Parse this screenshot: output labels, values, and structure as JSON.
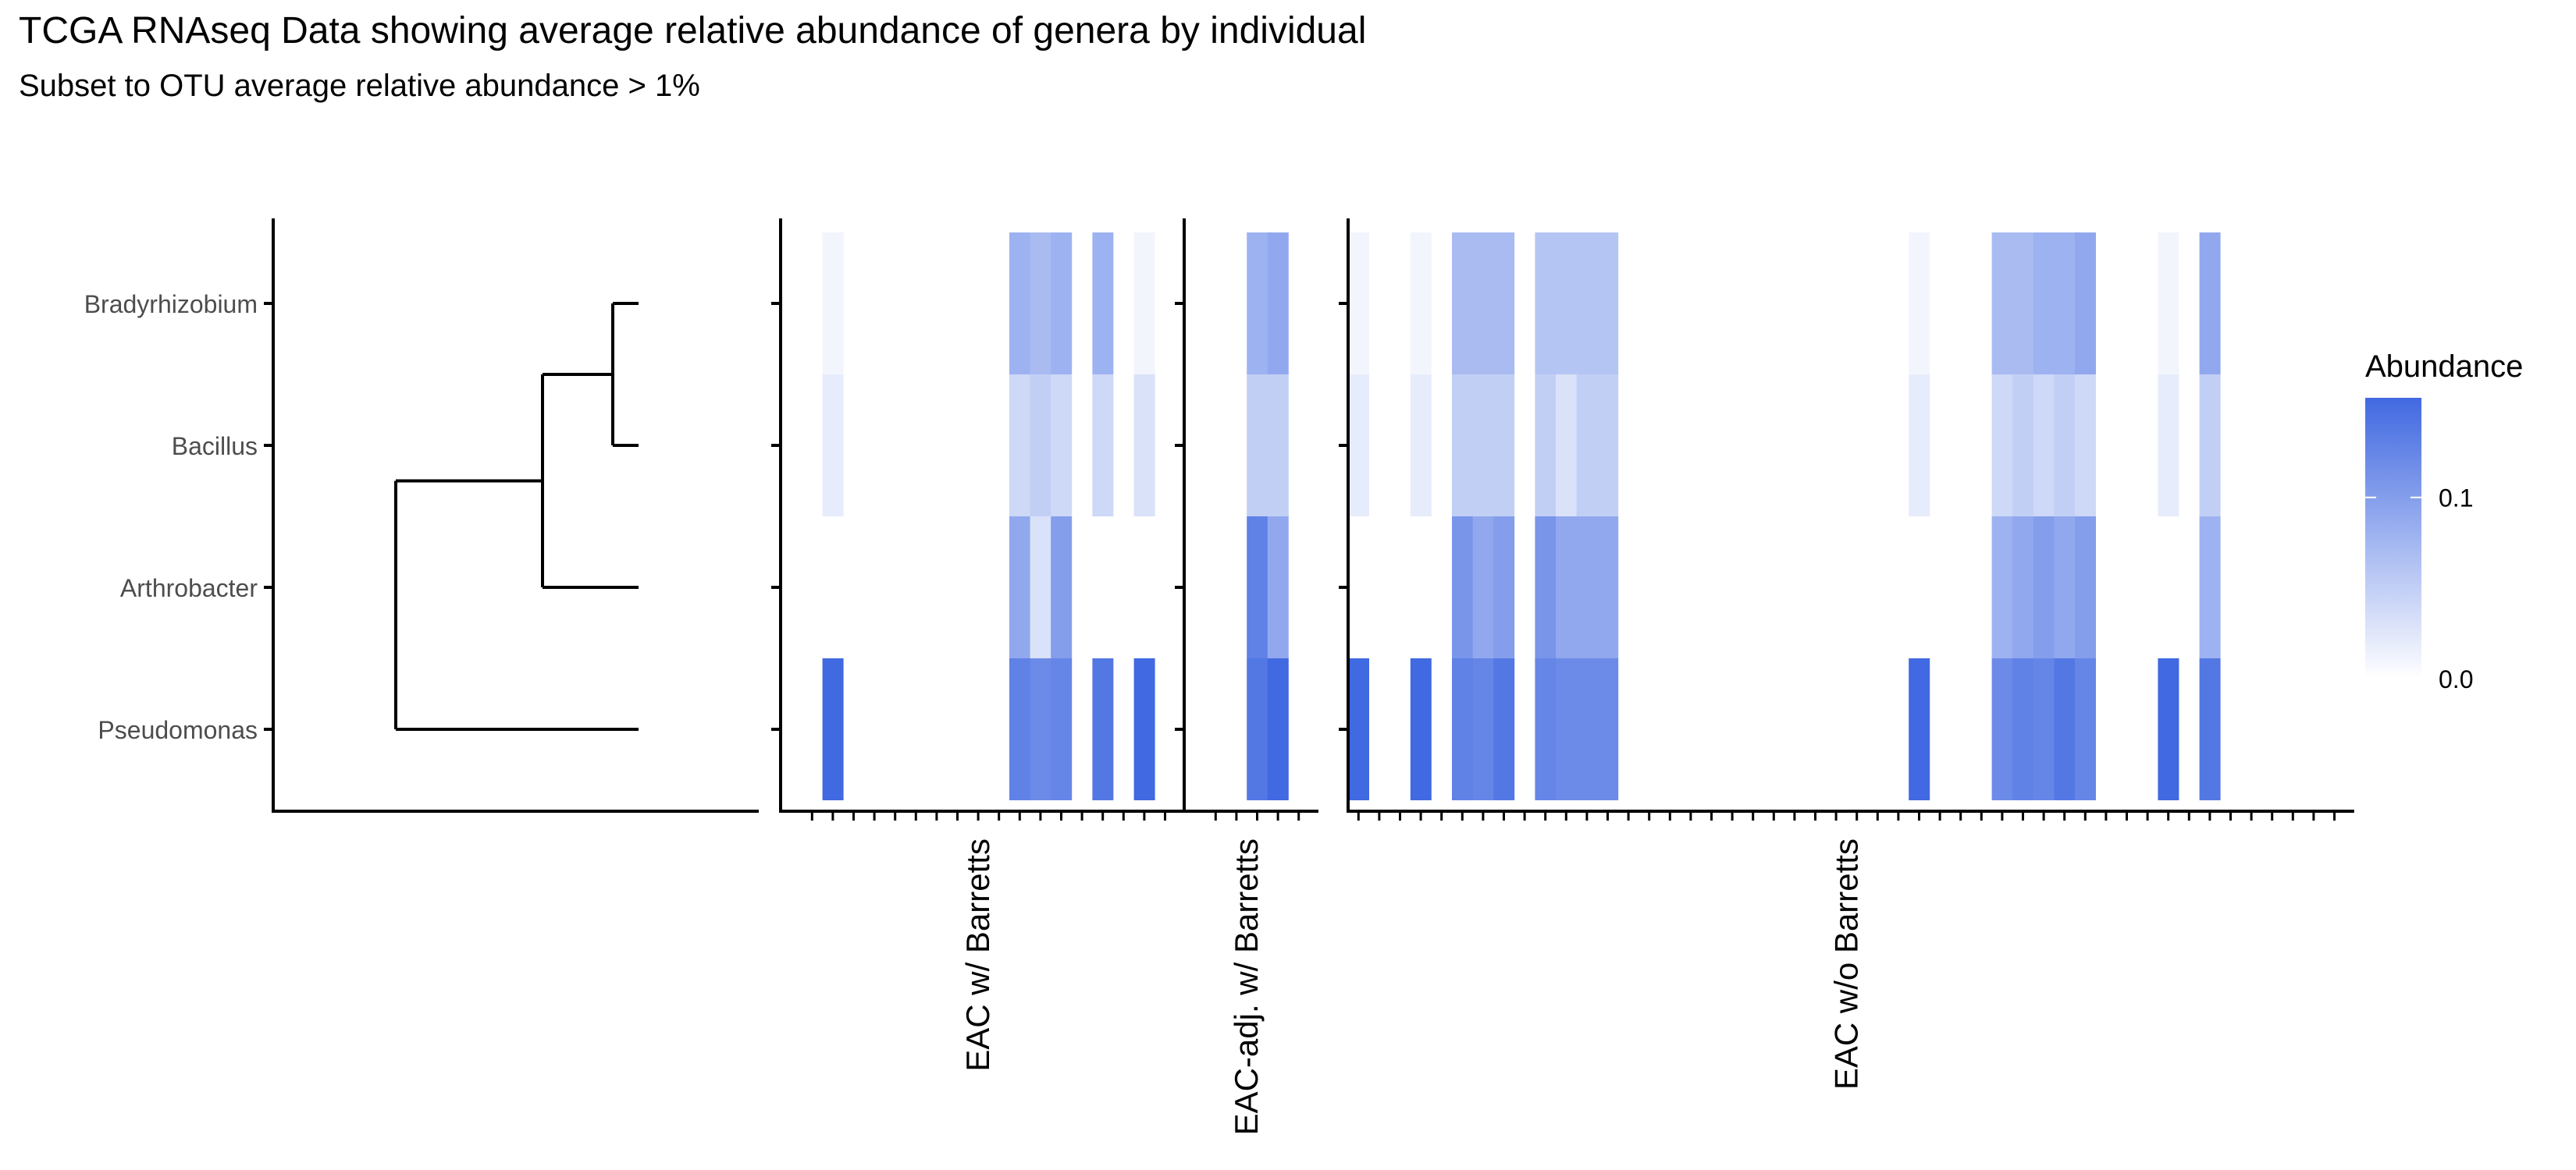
{
  "title": "TCGA RNAseq Data showing average relative abundance of genera by individual",
  "subtitle": "Subset to OTU average relative abundance > 1%",
  "colors": {
    "low": "#ffffff",
    "high": "#4169e1",
    "axis": "#000000",
    "label": "#4d4d4d"
  },
  "chart_data": {
    "type": "heatmap",
    "title": "TCGA RNAseq Data showing average relative abundance of genera by individual",
    "subtitle": "Subset to OTU average relative abundance > 1%",
    "rows": [
      "Bradyrhizobium",
      "Bacillus",
      "Arthrobacter",
      "Pseudomonas"
    ],
    "dendrogram": "((Bradyrhizobium,Bacillus),Arthrobacter),Pseudomonas",
    "legend": {
      "title": "Abundance",
      "min": 0.0,
      "max": 0.155,
      "ticks": [
        0.0,
        0.1
      ],
      "tick_labels": [
        "0.0",
        "0.1"
      ],
      "position": "right"
    },
    "panels": [
      {
        "label": "EAC w/ Barretts",
        "n": 18,
        "columns": [
          {
            "i": 1,
            "values": [
              0.01,
              0.02,
              0.0,
              0.155
            ]
          },
          {
            "i": 10,
            "values": [
              0.08,
              0.04,
              0.09,
              0.13
            ]
          },
          {
            "i": 11,
            "values": [
              0.07,
              0.05,
              0.03,
              0.12
            ]
          },
          {
            "i": 12,
            "values": [
              0.08,
              0.04,
              0.1,
              0.125
            ]
          },
          {
            "i": 14,
            "values": [
              0.08,
              0.04,
              0.0,
              0.14
            ]
          },
          {
            "i": 16,
            "values": [
              0.01,
              0.03,
              0.0,
              0.155
            ]
          }
        ]
      },
      {
        "label": "EAC-adj. w/ Barretts",
        "n": 5,
        "columns": [
          {
            "i": 2,
            "values": [
              0.08,
              0.05,
              0.13,
              0.14
            ]
          },
          {
            "i": 3,
            "values": [
              0.09,
              0.05,
              0.09,
              0.155
            ]
          }
        ]
      },
      {
        "label": "EAC w/o Barretts",
        "n": 48,
        "columns": [
          {
            "i": 0,
            "values": [
              0.01,
              0.02,
              0.0,
              0.155
            ]
          },
          {
            "i": 3,
            "values": [
              0.01,
              0.02,
              0.0,
              0.155
            ]
          },
          {
            "i": 5,
            "values": [
              0.07,
              0.05,
              0.11,
              0.13
            ]
          },
          {
            "i": 6,
            "values": [
              0.07,
              0.05,
              0.09,
              0.125
            ]
          },
          {
            "i": 7,
            "values": [
              0.07,
              0.05,
              0.1,
              0.14
            ]
          },
          {
            "i": 9,
            "values": [
              0.06,
              0.05,
              0.11,
              0.125
            ]
          },
          {
            "i": 10,
            "values": [
              0.06,
              0.03,
              0.09,
              0.12
            ]
          },
          {
            "i": 11,
            "values": [
              0.06,
              0.05,
              0.09,
              0.12
            ]
          },
          {
            "i": 12,
            "values": [
              0.06,
              0.05,
              0.09,
              0.12
            ]
          },
          {
            "i": 27,
            "values": [
              0.01,
              0.02,
              0.0,
              0.155
            ]
          },
          {
            "i": 31,
            "values": [
              0.07,
              0.04,
              0.08,
              0.12
            ]
          },
          {
            "i": 32,
            "values": [
              0.07,
              0.05,
              0.09,
              0.13
            ]
          },
          {
            "i": 33,
            "values": [
              0.08,
              0.04,
              0.1,
              0.125
            ]
          },
          {
            "i": 34,
            "values": [
              0.08,
              0.05,
              0.09,
              0.14
            ]
          },
          {
            "i": 35,
            "values": [
              0.09,
              0.04,
              0.1,
              0.125
            ]
          },
          {
            "i": 39,
            "values": [
              0.01,
              0.02,
              0.0,
              0.155
            ]
          },
          {
            "i": 41,
            "values": [
              0.09,
              0.05,
              0.08,
              0.14
            ]
          }
        ]
      }
    ]
  }
}
